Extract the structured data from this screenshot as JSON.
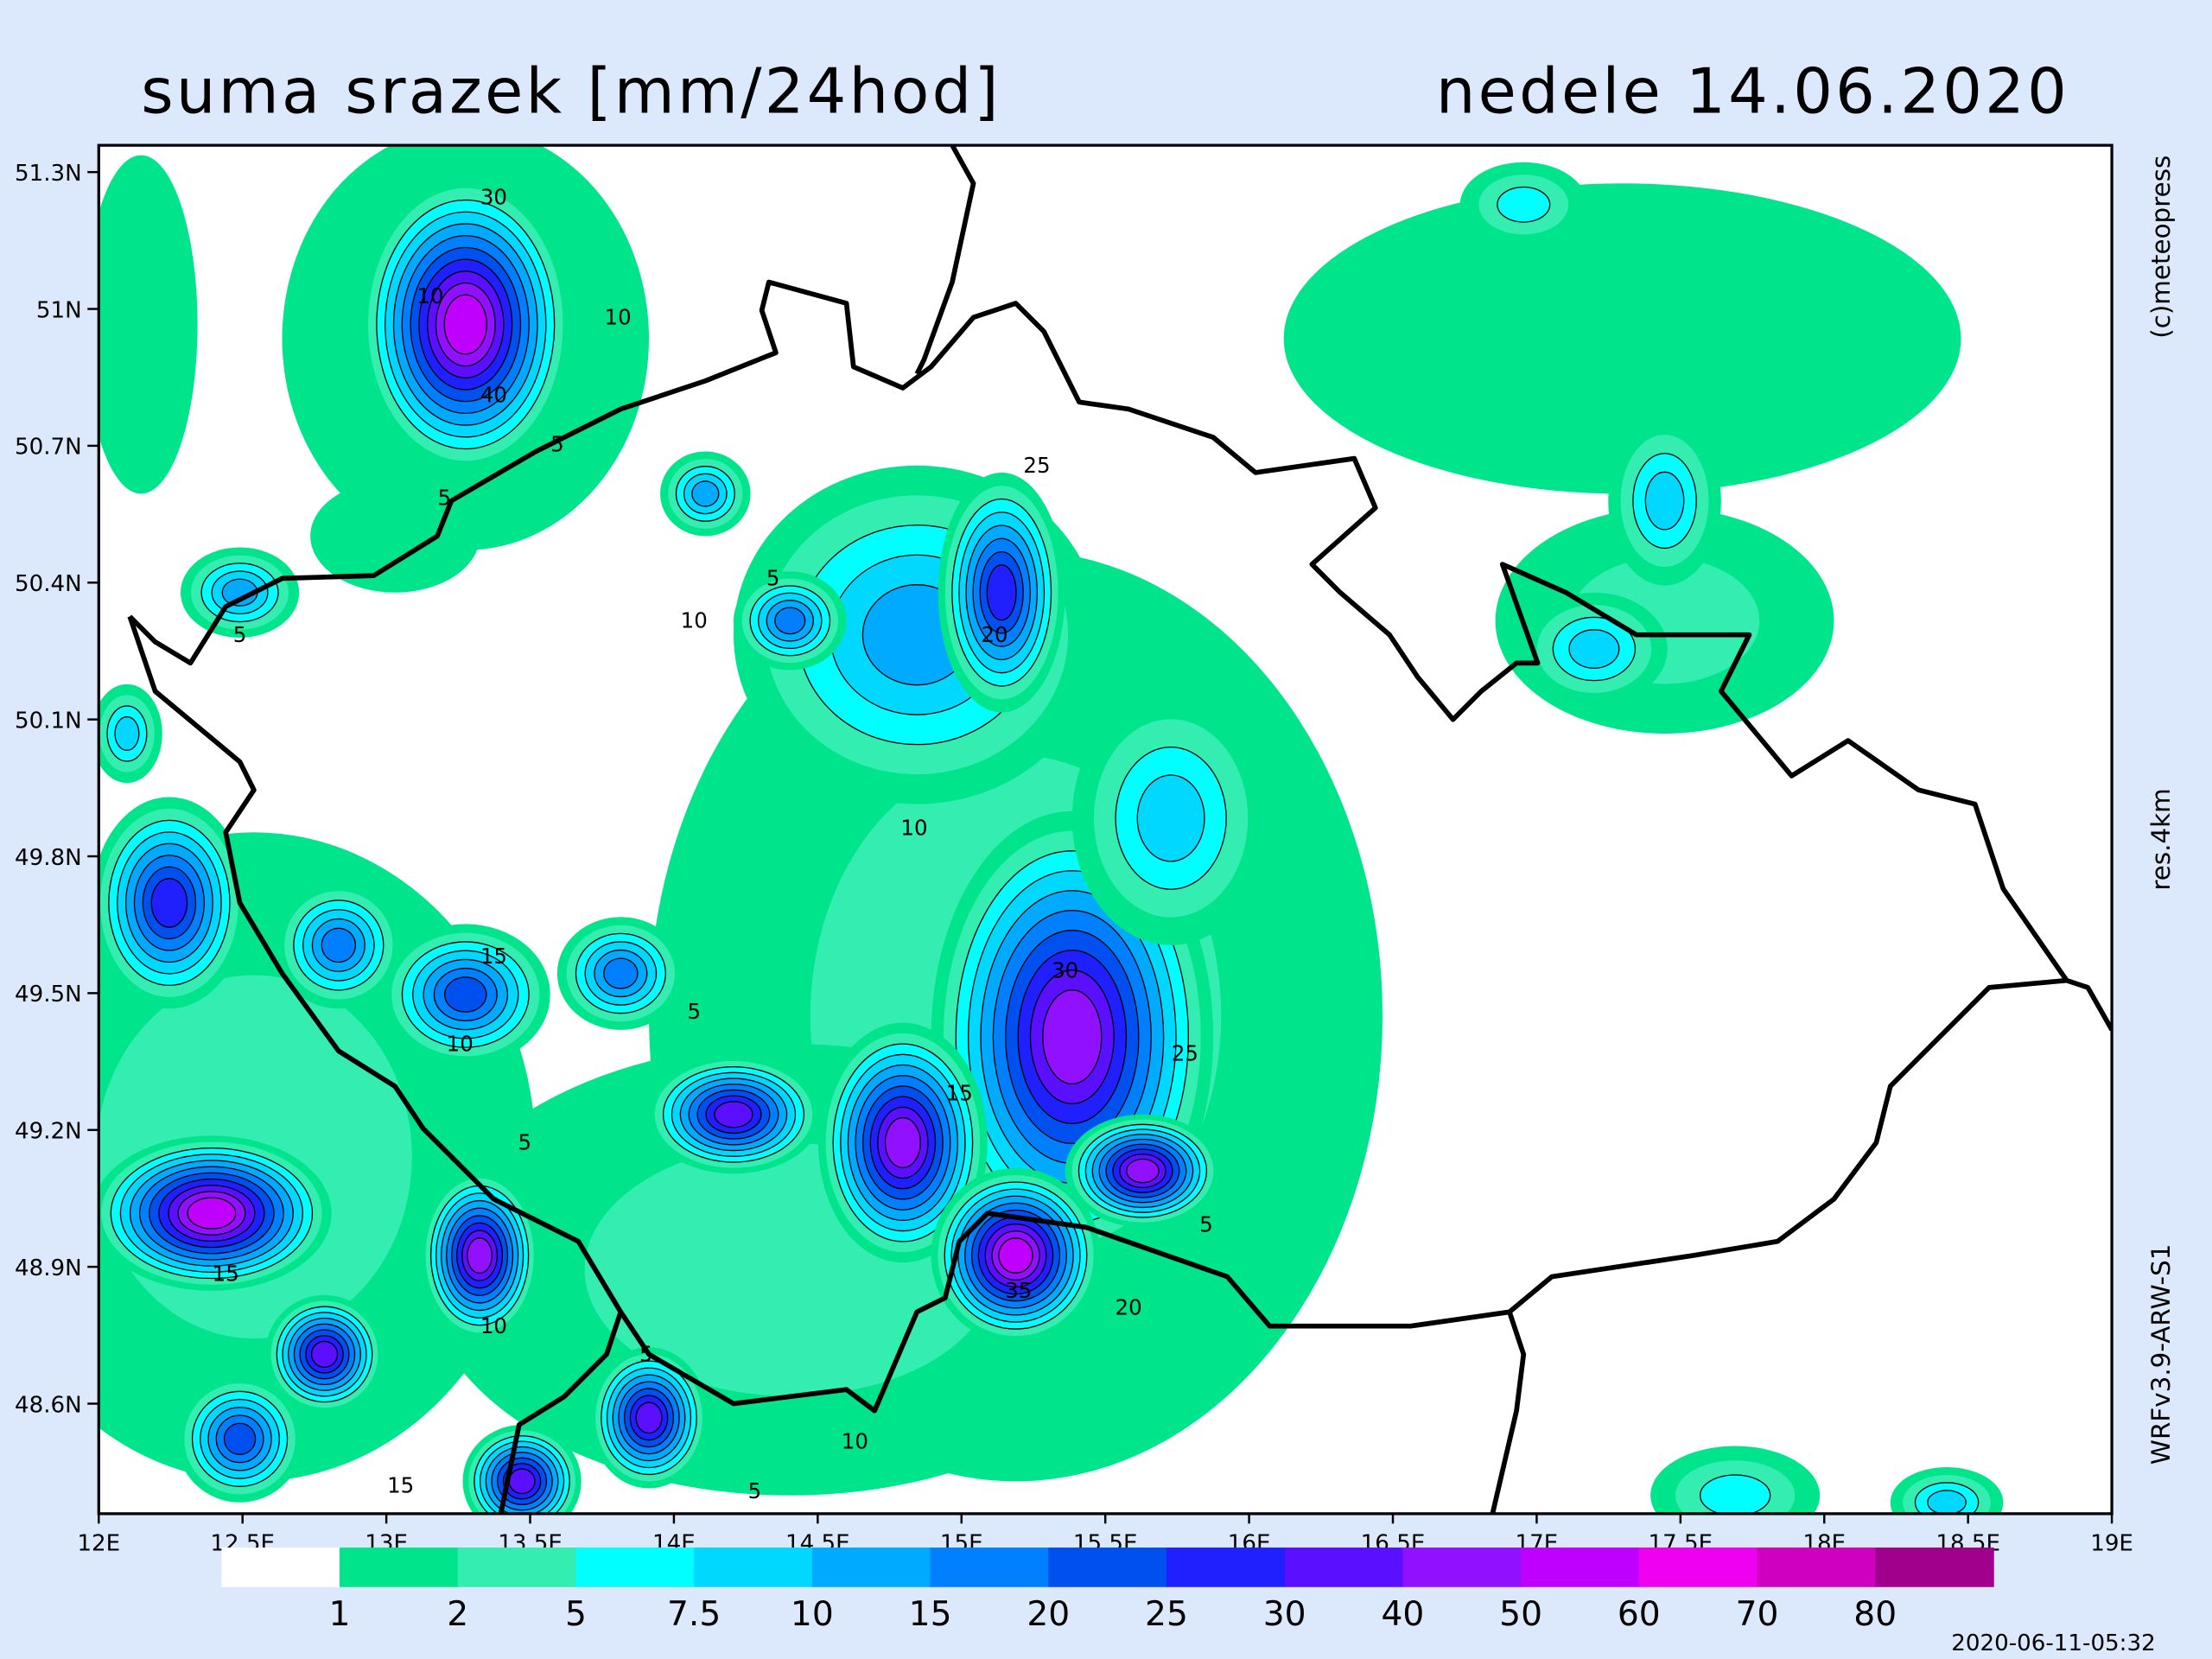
{
  "header": {
    "title": "suma srazek [mm/24hod]",
    "date": "nedele 14.06.2020"
  },
  "map": {
    "lat_labels": [
      "51.3N",
      "51N",
      "50.7N",
      "50.4N",
      "50.1N",
      "49.8N",
      "49.5N",
      "49.2N",
      "48.9N",
      "48.6N"
    ],
    "lon_labels": [
      "12E",
      "12.5E",
      "13E",
      "13.5E",
      "14E",
      "14.5E",
      "15E",
      "15.5E",
      "16E",
      "16.5E",
      "17E",
      "17.5E",
      "18E",
      "18.5E",
      "19E"
    ],
    "contour_labels": [
      "30",
      "10",
      "10",
      "40",
      "5",
      "5",
      "5",
      "10",
      "20",
      "10",
      "5",
      "25",
      "15",
      "10",
      "5",
      "30",
      "5",
      "15",
      "25",
      "35",
      "20",
      "5",
      "15",
      "10",
      "5",
      "15",
      "10",
      "5"
    ]
  },
  "legend": {
    "levels": [
      1,
      2,
      5,
      7.5,
      10,
      15,
      20,
      25,
      30,
      40,
      50,
      60,
      70,
      80
    ],
    "colors": [
      "#ffffff",
      "#00e58c",
      "#33eeb0",
      "#00ffff",
      "#00d8ff",
      "#00aaff",
      "#0080ff",
      "#0050f0",
      "#2020ff",
      "#5a10ff",
      "#9010ff",
      "#c000ff",
      "#f000f0",
      "#d000c0",
      "#a0008c"
    ]
  },
  "side": {
    "copyright": "(c)meteopress",
    "resolution": "res.4km",
    "model": "WRFv3.9-ARW-S1",
    "timestamp": "2020-06-11-05:32"
  }
}
